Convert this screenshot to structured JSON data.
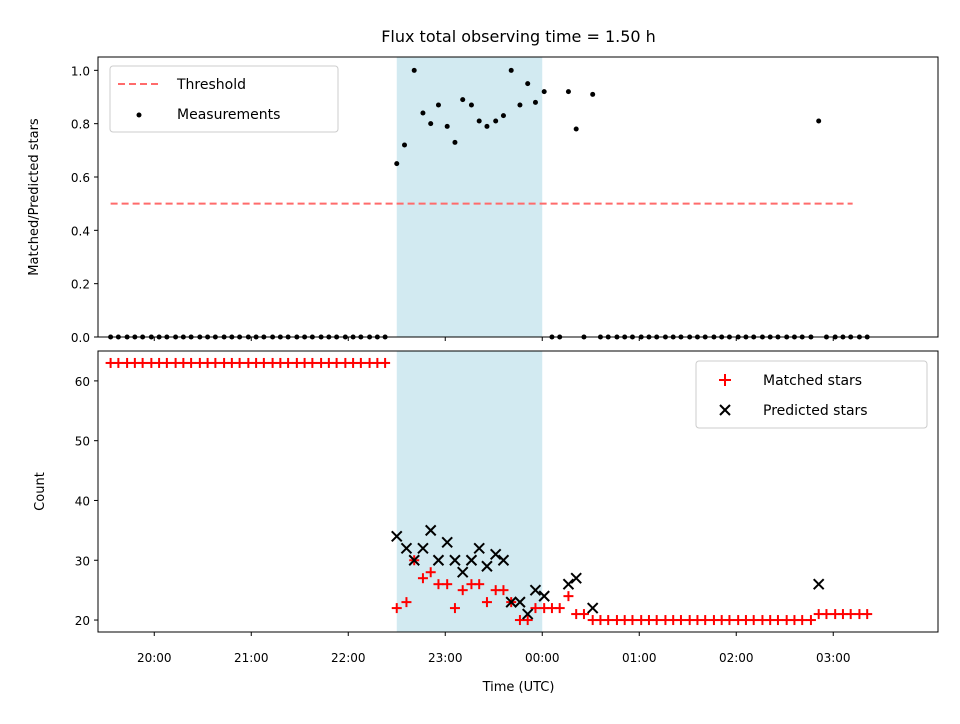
{
  "chart_data": [
    {
      "type": "scatter",
      "title": "Flux total observing time = 1.50 h",
      "xlabel": "",
      "ylabel": "Matched/Predicted stars",
      "ylim": [
        0,
        1.05
      ],
      "yticks": [
        "0.0",
        "0.2",
        "0.4",
        "0.6",
        "0.8",
        "1.0"
      ],
      "xlim_hours": [
        19.42,
        28.08
      ],
      "legend_position": "top-left",
      "highlight_span_hours": [
        22.5,
        24.0
      ],
      "highlight_color": "#add8e6",
      "threshold": {
        "name": "Threshold",
        "value": 0.5,
        "x_from_hours": 19.55,
        "x_to_hours": 27.2,
        "color": "#ff6b6b"
      },
      "series": [
        {
          "name": "Measurements",
          "color": "#000000",
          "points": [
            [
              19.55,
              0
            ],
            [
              19.63,
              0
            ],
            [
              19.72,
              0
            ],
            [
              19.8,
              0
            ],
            [
              19.88,
              0
            ],
            [
              19.97,
              0
            ],
            [
              20.05,
              0
            ],
            [
              20.13,
              0
            ],
            [
              20.22,
              0
            ],
            [
              20.3,
              0
            ],
            [
              20.38,
              0
            ],
            [
              20.47,
              0
            ],
            [
              20.55,
              0
            ],
            [
              20.63,
              0
            ],
            [
              20.72,
              0
            ],
            [
              20.8,
              0
            ],
            [
              20.88,
              0
            ],
            [
              20.97,
              0
            ],
            [
              21.05,
              0
            ],
            [
              21.13,
              0
            ],
            [
              21.22,
              0
            ],
            [
              21.3,
              0
            ],
            [
              21.38,
              0
            ],
            [
              21.47,
              0
            ],
            [
              21.55,
              0
            ],
            [
              21.63,
              0
            ],
            [
              21.72,
              0
            ],
            [
              21.8,
              0
            ],
            [
              21.88,
              0
            ],
            [
              21.97,
              0
            ],
            [
              22.05,
              0
            ],
            [
              22.13,
              0
            ],
            [
              22.22,
              0
            ],
            [
              22.3,
              0
            ],
            [
              22.38,
              0
            ],
            [
              22.5,
              0.65
            ],
            [
              22.58,
              0.72
            ],
            [
              22.68,
              1.0
            ],
            [
              22.77,
              0.84
            ],
            [
              22.85,
              0.8
            ],
            [
              22.93,
              0.87
            ],
            [
              23.02,
              0.79
            ],
            [
              23.1,
              0.73
            ],
            [
              23.18,
              0.89
            ],
            [
              23.27,
              0.87
            ],
            [
              23.35,
              0.81
            ],
            [
              23.43,
              0.79
            ],
            [
              23.52,
              0.81
            ],
            [
              23.6,
              0.83
            ],
            [
              23.68,
              1.0
            ],
            [
              23.77,
              0.87
            ],
            [
              23.85,
              0.95
            ],
            [
              23.93,
              0.88
            ],
            [
              24.02,
              0.92
            ],
            [
              24.1,
              0
            ],
            [
              24.18,
              0
            ],
            [
              24.27,
              0.92
            ],
            [
              24.35,
              0.78
            ],
            [
              24.43,
              0
            ],
            [
              24.52,
              0.91
            ],
            [
              24.6,
              0
            ],
            [
              24.68,
              0
            ],
            [
              24.77,
              0
            ],
            [
              24.85,
              0
            ],
            [
              24.93,
              0
            ],
            [
              25.02,
              0
            ],
            [
              25.1,
              0
            ],
            [
              25.18,
              0
            ],
            [
              25.27,
              0
            ],
            [
              25.35,
              0
            ],
            [
              25.43,
              0
            ],
            [
              25.52,
              0
            ],
            [
              25.6,
              0
            ],
            [
              25.68,
              0
            ],
            [
              25.77,
              0
            ],
            [
              25.85,
              0
            ],
            [
              25.93,
              0
            ],
            [
              26.02,
              0
            ],
            [
              26.1,
              0
            ],
            [
              26.18,
              0
            ],
            [
              26.27,
              0
            ],
            [
              26.35,
              0
            ],
            [
              26.43,
              0
            ],
            [
              26.52,
              0
            ],
            [
              26.6,
              0
            ],
            [
              26.68,
              0
            ],
            [
              26.77,
              0
            ],
            [
              26.85,
              0.81
            ],
            [
              26.93,
              0
            ],
            [
              27.02,
              0
            ],
            [
              27.1,
              0
            ],
            [
              27.18,
              0
            ],
            [
              27.27,
              0
            ],
            [
              27.35,
              0
            ]
          ]
        }
      ]
    },
    {
      "type": "scatter",
      "title": "",
      "xlabel": "Time (UTC)",
      "ylabel": "Count",
      "ylim": [
        18,
        65
      ],
      "yticks": [
        "20",
        "30",
        "40",
        "50",
        "60"
      ],
      "xticks": [
        "20:00",
        "21:00",
        "22:00",
        "23:00",
        "00:00",
        "01:00",
        "02:00",
        "03:00"
      ],
      "xlim_hours": [
        19.42,
        28.08
      ],
      "legend_position": "top-right",
      "series": [
        {
          "name": "Matched stars",
          "marker": "plus",
          "color": "#ff0000",
          "points": [
            [
              19.55,
              63
            ],
            [
              19.63,
              63
            ],
            [
              19.72,
              63
            ],
            [
              19.8,
              63
            ],
            [
              19.88,
              63
            ],
            [
              19.97,
              63
            ],
            [
              20.05,
              63
            ],
            [
              20.13,
              63
            ],
            [
              20.22,
              63
            ],
            [
              20.3,
              63
            ],
            [
              20.38,
              63
            ],
            [
              20.47,
              63
            ],
            [
              20.55,
              63
            ],
            [
              20.63,
              63
            ],
            [
              20.72,
              63
            ],
            [
              20.8,
              63
            ],
            [
              20.88,
              63
            ],
            [
              20.97,
              63
            ],
            [
              21.05,
              63
            ],
            [
              21.13,
              63
            ],
            [
              21.22,
              63
            ],
            [
              21.3,
              63
            ],
            [
              21.38,
              63
            ],
            [
              21.47,
              63
            ],
            [
              21.55,
              63
            ],
            [
              21.63,
              63
            ],
            [
              21.72,
              63
            ],
            [
              21.8,
              63
            ],
            [
              21.88,
              63
            ],
            [
              21.97,
              63
            ],
            [
              22.05,
              63
            ],
            [
              22.13,
              63
            ],
            [
              22.22,
              63
            ],
            [
              22.3,
              63
            ],
            [
              22.38,
              63
            ],
            [
              22.5,
              22
            ],
            [
              22.6,
              23
            ],
            [
              22.68,
              30
            ],
            [
              22.77,
              27
            ],
            [
              22.85,
              28
            ],
            [
              22.93,
              26
            ],
            [
              23.02,
              26
            ],
            [
              23.1,
              22
            ],
            [
              23.18,
              25
            ],
            [
              23.27,
              26
            ],
            [
              23.35,
              26
            ],
            [
              23.43,
              23
            ],
            [
              23.52,
              25
            ],
            [
              23.6,
              25
            ],
            [
              23.68,
              23
            ],
            [
              23.77,
              20
            ],
            [
              23.85,
              20
            ],
            [
              23.93,
              22
            ],
            [
              24.02,
              22
            ],
            [
              24.1,
              22
            ],
            [
              24.18,
              22
            ],
            [
              24.27,
              24
            ],
            [
              24.35,
              21
            ],
            [
              24.43,
              21
            ],
            [
              24.52,
              20
            ],
            [
              24.6,
              20
            ],
            [
              24.68,
              20
            ],
            [
              24.77,
              20
            ],
            [
              24.85,
              20
            ],
            [
              24.93,
              20
            ],
            [
              25.02,
              20
            ],
            [
              25.1,
              20
            ],
            [
              25.18,
              20
            ],
            [
              25.27,
              20
            ],
            [
              25.35,
              20
            ],
            [
              25.43,
              20
            ],
            [
              25.52,
              20
            ],
            [
              25.6,
              20
            ],
            [
              25.68,
              20
            ],
            [
              25.77,
              20
            ],
            [
              25.85,
              20
            ],
            [
              25.93,
              20
            ],
            [
              26.02,
              20
            ],
            [
              26.1,
              20
            ],
            [
              26.18,
              20
            ],
            [
              26.27,
              20
            ],
            [
              26.35,
              20
            ],
            [
              26.43,
              20
            ],
            [
              26.52,
              20
            ],
            [
              26.6,
              20
            ],
            [
              26.68,
              20
            ],
            [
              26.77,
              20
            ],
            [
              26.85,
              21
            ],
            [
              26.93,
              21
            ],
            [
              27.02,
              21
            ],
            [
              27.1,
              21
            ],
            [
              27.18,
              21
            ],
            [
              27.27,
              21
            ],
            [
              27.35,
              21
            ]
          ]
        },
        {
          "name": "Predicted stars",
          "marker": "x",
          "color": "#000000",
          "points": [
            [
              22.5,
              34
            ],
            [
              22.6,
              32
            ],
            [
              22.68,
              30
            ],
            [
              22.77,
              32
            ],
            [
              22.85,
              35
            ],
            [
              22.93,
              30
            ],
            [
              23.02,
              33
            ],
            [
              23.1,
              30
            ],
            [
              23.18,
              28
            ],
            [
              23.27,
              30
            ],
            [
              23.35,
              32
            ],
            [
              23.43,
              29
            ],
            [
              23.52,
              31
            ],
            [
              23.6,
              30
            ],
            [
              23.68,
              23
            ],
            [
              23.77,
              23
            ],
            [
              23.85,
              21
            ],
            [
              23.93,
              25
            ],
            [
              24.02,
              24
            ],
            [
              24.27,
              26
            ],
            [
              24.35,
              27
            ],
            [
              24.52,
              22
            ],
            [
              26.85,
              26
            ]
          ]
        }
      ]
    }
  ]
}
